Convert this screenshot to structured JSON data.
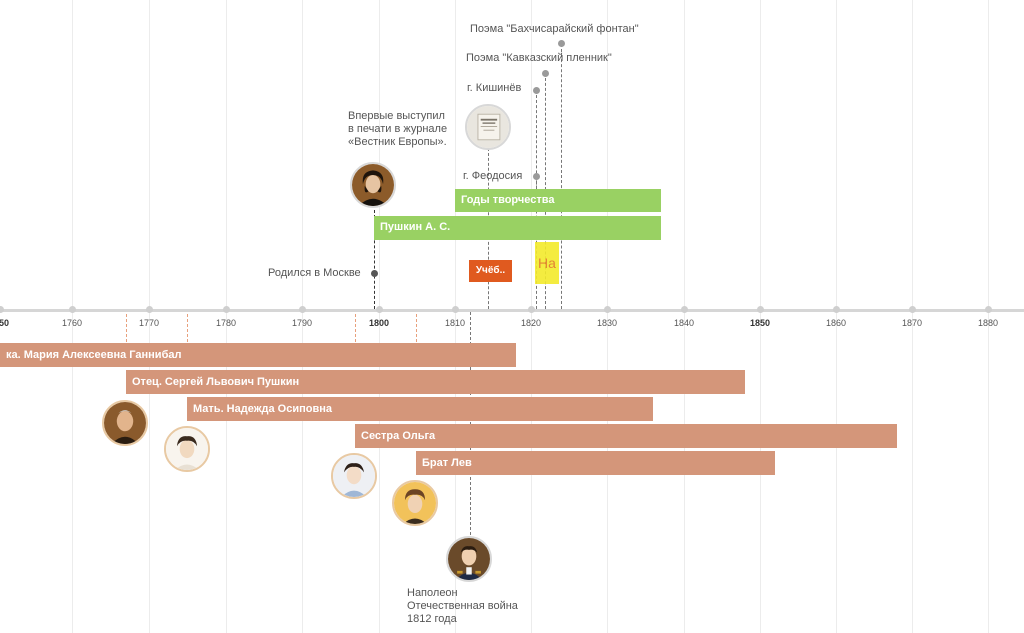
{
  "axis": {
    "ticks": [
      "1760",
      "1770",
      "1780",
      "1790",
      "1800",
      "1810",
      "1820",
      "1830",
      "1840",
      "1850",
      "1860",
      "1870",
      "1880"
    ],
    "edge_label": "50",
    "bold_ticks": [
      "1800",
      "1850"
    ]
  },
  "events": {
    "bakhchisaray": "Поэма \"Бахчисарайский фонтан\"",
    "caucasus": "Поэма \"Кавказский пленник\"",
    "kishinev": "г. Кишинёв",
    "feodosia": "г. Феодосия",
    "first_publication": [
      "Впервые выступил",
      "в печати в журнале",
      "«Вестник Европы»."
    ],
    "born": "Родился в Москве",
    "lyceum": "Учёб..",
    "exile": "На",
    "napoleon": [
      "Наполеон",
      "Отечественная война",
      "1812 года"
    ]
  },
  "bars": {
    "creative_years": "Годы творчества",
    "pushkin": "Пушкин А. С.",
    "grandmother": "ка. Мария Алексеевна Ганнибал",
    "father": "Отец. Сергей Львович Пушкин",
    "mother": "Мать. Надежда Осиповна",
    "sister": "Сестра Ольга",
    "brother": "Брат Лев"
  },
  "colors": {
    "green": "#99d163",
    "salmon": "#d4967a",
    "orange": "#e05a1f",
    "yellow": "#f3ea2c"
  }
}
